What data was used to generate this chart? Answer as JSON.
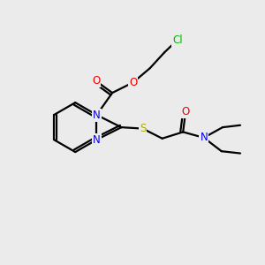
{
  "background_color": "#ebebeb",
  "atom_colors": {
    "C": "#000000",
    "N": "#0000ee",
    "O": "#ee0000",
    "S": "#aaaa00",
    "Cl": "#00bb00"
  },
  "figsize": [
    3.0,
    3.0
  ],
  "dpi": 100,
  "lw": 1.6,
  "fontsize": 8.5
}
